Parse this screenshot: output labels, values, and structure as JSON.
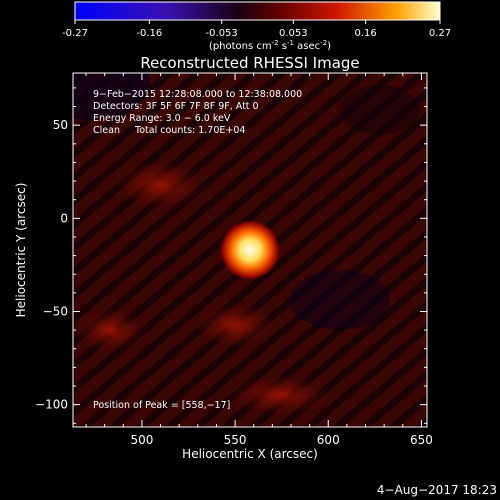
{
  "colorbar": {
    "ticks": [
      "-0.27",
      "-0.16",
      "-0.053",
      "0.053",
      "0.16",
      "0.27"
    ],
    "units_text": "(photons cm",
    "units_sup1": "-2",
    "units_mid": " s",
    "units_sup2": "-1",
    "units_end": " asec",
    "units_sup3": "-2",
    "units_close": ")",
    "range": [
      -0.27,
      0.27
    ]
  },
  "chart_data": {
    "type": "heatmap",
    "title": "Reconstructed RHESSI Image",
    "xlabel": "Heliocentric X (arcsec)",
    "ylabel": "Heliocentric Y (arcsec)",
    "xlim": [
      463,
      653
    ],
    "ylim": [
      -112,
      78
    ],
    "x_ticks": [
      "500",
      "550",
      "600",
      "650"
    ],
    "y_ticks": [
      "50",
      "0",
      "−50",
      "−100"
    ],
    "x_tick_values": [
      500,
      550,
      600,
      650
    ],
    "y_tick_values": [
      50,
      0,
      -50,
      -100
    ],
    "peak": {
      "x": 558,
      "y": -17
    },
    "info_lines": [
      "9−Feb−2015 12:28:08.000 to 12:38:08.000",
      "Detectors: 3F 5F 6F 7F 8F 9F, Att 0",
      "Energy Range: 3.0 − 6.0 keV",
      "Clean     Total counts: 1.70E+04"
    ],
    "peak_text": "Position of Peak = [558,−17]"
  },
  "footer": {
    "timestamp": "4−Aug−2017 18:23"
  }
}
